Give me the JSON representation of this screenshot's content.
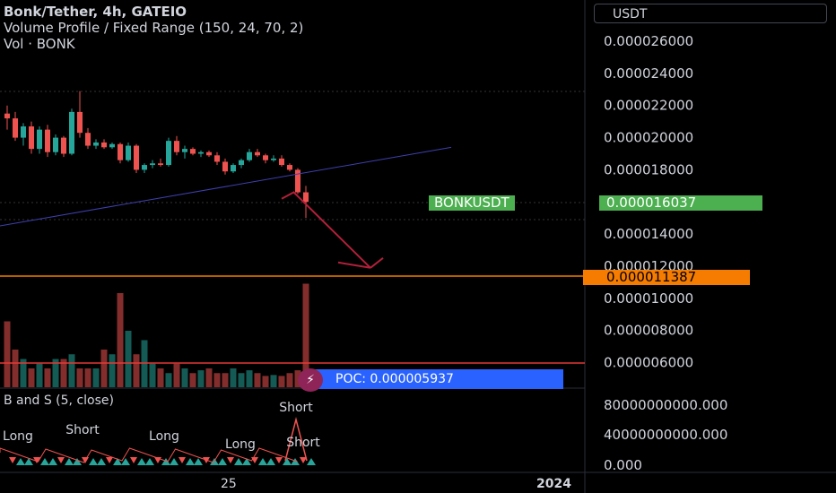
{
  "header": {
    "title": "Bonk/Tether, 4h, GATEIO",
    "indicator_vp": "Volume Profile / Fixed Range (150, 24, 70, 2)",
    "indicator_vol": "Vol · BONK",
    "indicator_bs": "B and S (5, close)"
  },
  "currency_button": "USDT",
  "price_axis": {
    "labels": [
      "0.000026000",
      "0.000024000",
      "0.000022000",
      "0.000020000",
      "0.000018000",
      "0.000014000",
      "0.000012000",
      "0.000010000",
      "0.000008000",
      "0.000006000"
    ],
    "values": [
      2.6e-05,
      2.4e-05,
      2.2e-05,
      2e-05,
      1.8e-05,
      1.4e-05,
      1.2e-05,
      1e-05,
      8e-06,
      6e-06
    ]
  },
  "osc_axis": {
    "labels": [
      "80000000000.000",
      "40000000000.000",
      "0.000"
    ],
    "values": [
      80000000000,
      40000000000,
      0
    ]
  },
  "symbol_tag": "BONKUSDT",
  "last_price_tag": "0.000016037",
  "target_price_tag": "0.000011387",
  "poc_label": "POC: 0.000005937",
  "time_axis": [
    "25",
    "2024"
  ],
  "signals": [
    {
      "text": "Short",
      "x": 92,
      "y": 484
    },
    {
      "text": "Long",
      "x": 183,
      "y": 491
    },
    {
      "text": "Short",
      "x": 330,
      "y": 459
    },
    {
      "text": "Short",
      "x": 338,
      "y": 498
    },
    {
      "text": "Long",
      "x": 268,
      "y": 500
    },
    {
      "text": "Long",
      "x": 20,
      "y": 491
    }
  ],
  "colors": {
    "background": "#000000",
    "up": "#26a69a",
    "down": "#ef5350",
    "trendline": "#3f3fb0",
    "arrow": "#b2203a",
    "target_line": "#f57c00",
    "poc_line": "#e53935",
    "symbol_tag_bg": "#4caf50",
    "target_tag_bg": "#f57c00",
    "poc_bg": "#2962ff"
  },
  "chart_data": {
    "type": "candlestick",
    "symbol": "BONKUSDT",
    "interval": "4h",
    "exchange": "GATEIO",
    "ohlc": [
      [
        2.15e-05,
        2.2e-05,
        2.05e-05,
        2.12e-05
      ],
      [
        2.12e-05,
        2.16e-05,
        1.98e-05,
        2e-05
      ],
      [
        2e-05,
        2.09e-05,
        1.95e-05,
        2.07e-05
      ],
      [
        2.07e-05,
        2.1e-05,
        1.9e-05,
        1.93e-05
      ],
      [
        1.93e-05,
        2.07e-05,
        1.9e-05,
        2.05e-05
      ],
      [
        2.05e-05,
        2.08e-05,
        1.88e-05,
        1.91e-05
      ],
      [
        1.91e-05,
        2.02e-05,
        1.89e-05,
        2e-05
      ],
      [
        2e-05,
        2.01e-05,
        1.88e-05,
        1.9e-05
      ],
      [
        1.9e-05,
        2.18e-05,
        1.89e-05,
        2.16e-05
      ],
      [
        2.16e-05,
        2.29e-05,
        2e-05,
        2.03e-05
      ],
      [
        2.03e-05,
        2.06e-05,
        1.93e-05,
        1.95e-05
      ],
      [
        1.95e-05,
        1.99e-05,
        1.93e-05,
        1.97e-05
      ],
      [
        1.97e-05,
        1.99e-05,
        1.93e-05,
        1.94e-05
      ],
      [
        1.94e-05,
        1.97e-05,
        1.93e-05,
        1.96e-05
      ],
      [
        1.96e-05,
        1.97e-05,
        1.84e-05,
        1.86e-05
      ],
      [
        1.86e-05,
        1.97e-05,
        1.85e-05,
        1.95e-05
      ],
      [
        1.95e-05,
        1.96e-05,
        1.78e-05,
        1.8e-05
      ],
      [
        1.8e-05,
        1.84e-05,
        1.78e-05,
        1.83e-05
      ],
      [
        1.83e-05,
        1.86e-05,
        1.81e-05,
        1.84e-05
      ],
      [
        1.84e-05,
        1.87e-05,
        1.82e-05,
        1.83e-05
      ],
      [
        1.83e-05,
        2e-05,
        1.82e-05,
        1.98e-05
      ],
      [
        1.98e-05,
        2.01e-05,
        1.89e-05,
        1.91e-05
      ],
      [
        1.91e-05,
        1.95e-05,
        1.87e-05,
        1.93e-05
      ],
      [
        1.93e-05,
        1.94e-05,
        1.89e-05,
        1.9e-05
      ],
      [
        1.9e-05,
        1.92e-05,
        1.88e-05,
        1.91e-05
      ],
      [
        1.91e-05,
        1.92e-05,
        1.88e-05,
        1.89e-05
      ],
      [
        1.89e-05,
        1.91e-05,
        1.83e-05,
        1.85e-05
      ],
      [
        1.85e-05,
        1.87e-05,
        1.77e-05,
        1.79e-05
      ],
      [
        1.79e-05,
        1.84e-05,
        1.78e-05,
        1.83e-05
      ],
      [
        1.83e-05,
        1.87e-05,
        1.81e-05,
        1.86e-05
      ],
      [
        1.86e-05,
        1.93e-05,
        1.85e-05,
        1.91e-05
      ],
      [
        1.91e-05,
        1.93e-05,
        1.88e-05,
        1.89e-05
      ],
      [
        1.89e-05,
        1.9e-05,
        1.84e-05,
        1.86e-05
      ],
      [
        1.86e-05,
        1.89e-05,
        1.85e-05,
        1.87e-05
      ],
      [
        1.87e-05,
        1.89e-05,
        1.82e-05,
        1.83e-05
      ],
      [
        1.83e-05,
        1.84e-05,
        1.79e-05,
        1.8e-05
      ],
      [
        1.8e-05,
        1.81e-05,
        1.65e-05,
        1.66e-05
      ],
      [
        1.66e-05,
        1.7e-05,
        1.5e-05,
        1.6e-05
      ]
    ],
    "volume": [
      0.7,
      0.4,
      0.3,
      0.2,
      0.25,
      0.2,
      0.3,
      0.3,
      0.35,
      0.2,
      0.2,
      0.2,
      0.4,
      0.35,
      1.0,
      0.6,
      0.35,
      0.5,
      0.25,
      0.2,
      0.15,
      0.25,
      0.2,
      0.15,
      0.18,
      0.2,
      0.15,
      0.15,
      0.2,
      0.15,
      0.18,
      0.15,
      0.12,
      0.13,
      0.12,
      0.15,
      0.18,
      1.1
    ],
    "trendline": {
      "from_index": -1,
      "from_price": 1.45e-05,
      "to_index": 55,
      "to_price": 1.94e-05
    },
    "projection": [
      {
        "index": 34.0,
        "price": 1.62e-05
      },
      {
        "index": 35.5,
        "price": 1.66e-05
      },
      {
        "index": 45.0,
        "price": 1.19e-05
      }
    ],
    "target_level": 1.1387e-05,
    "last_price": 1.6037e-05,
    "poc_price": 5.937e-06,
    "ylim": [
      1.09e-05,
      2.85e-05
    ]
  }
}
